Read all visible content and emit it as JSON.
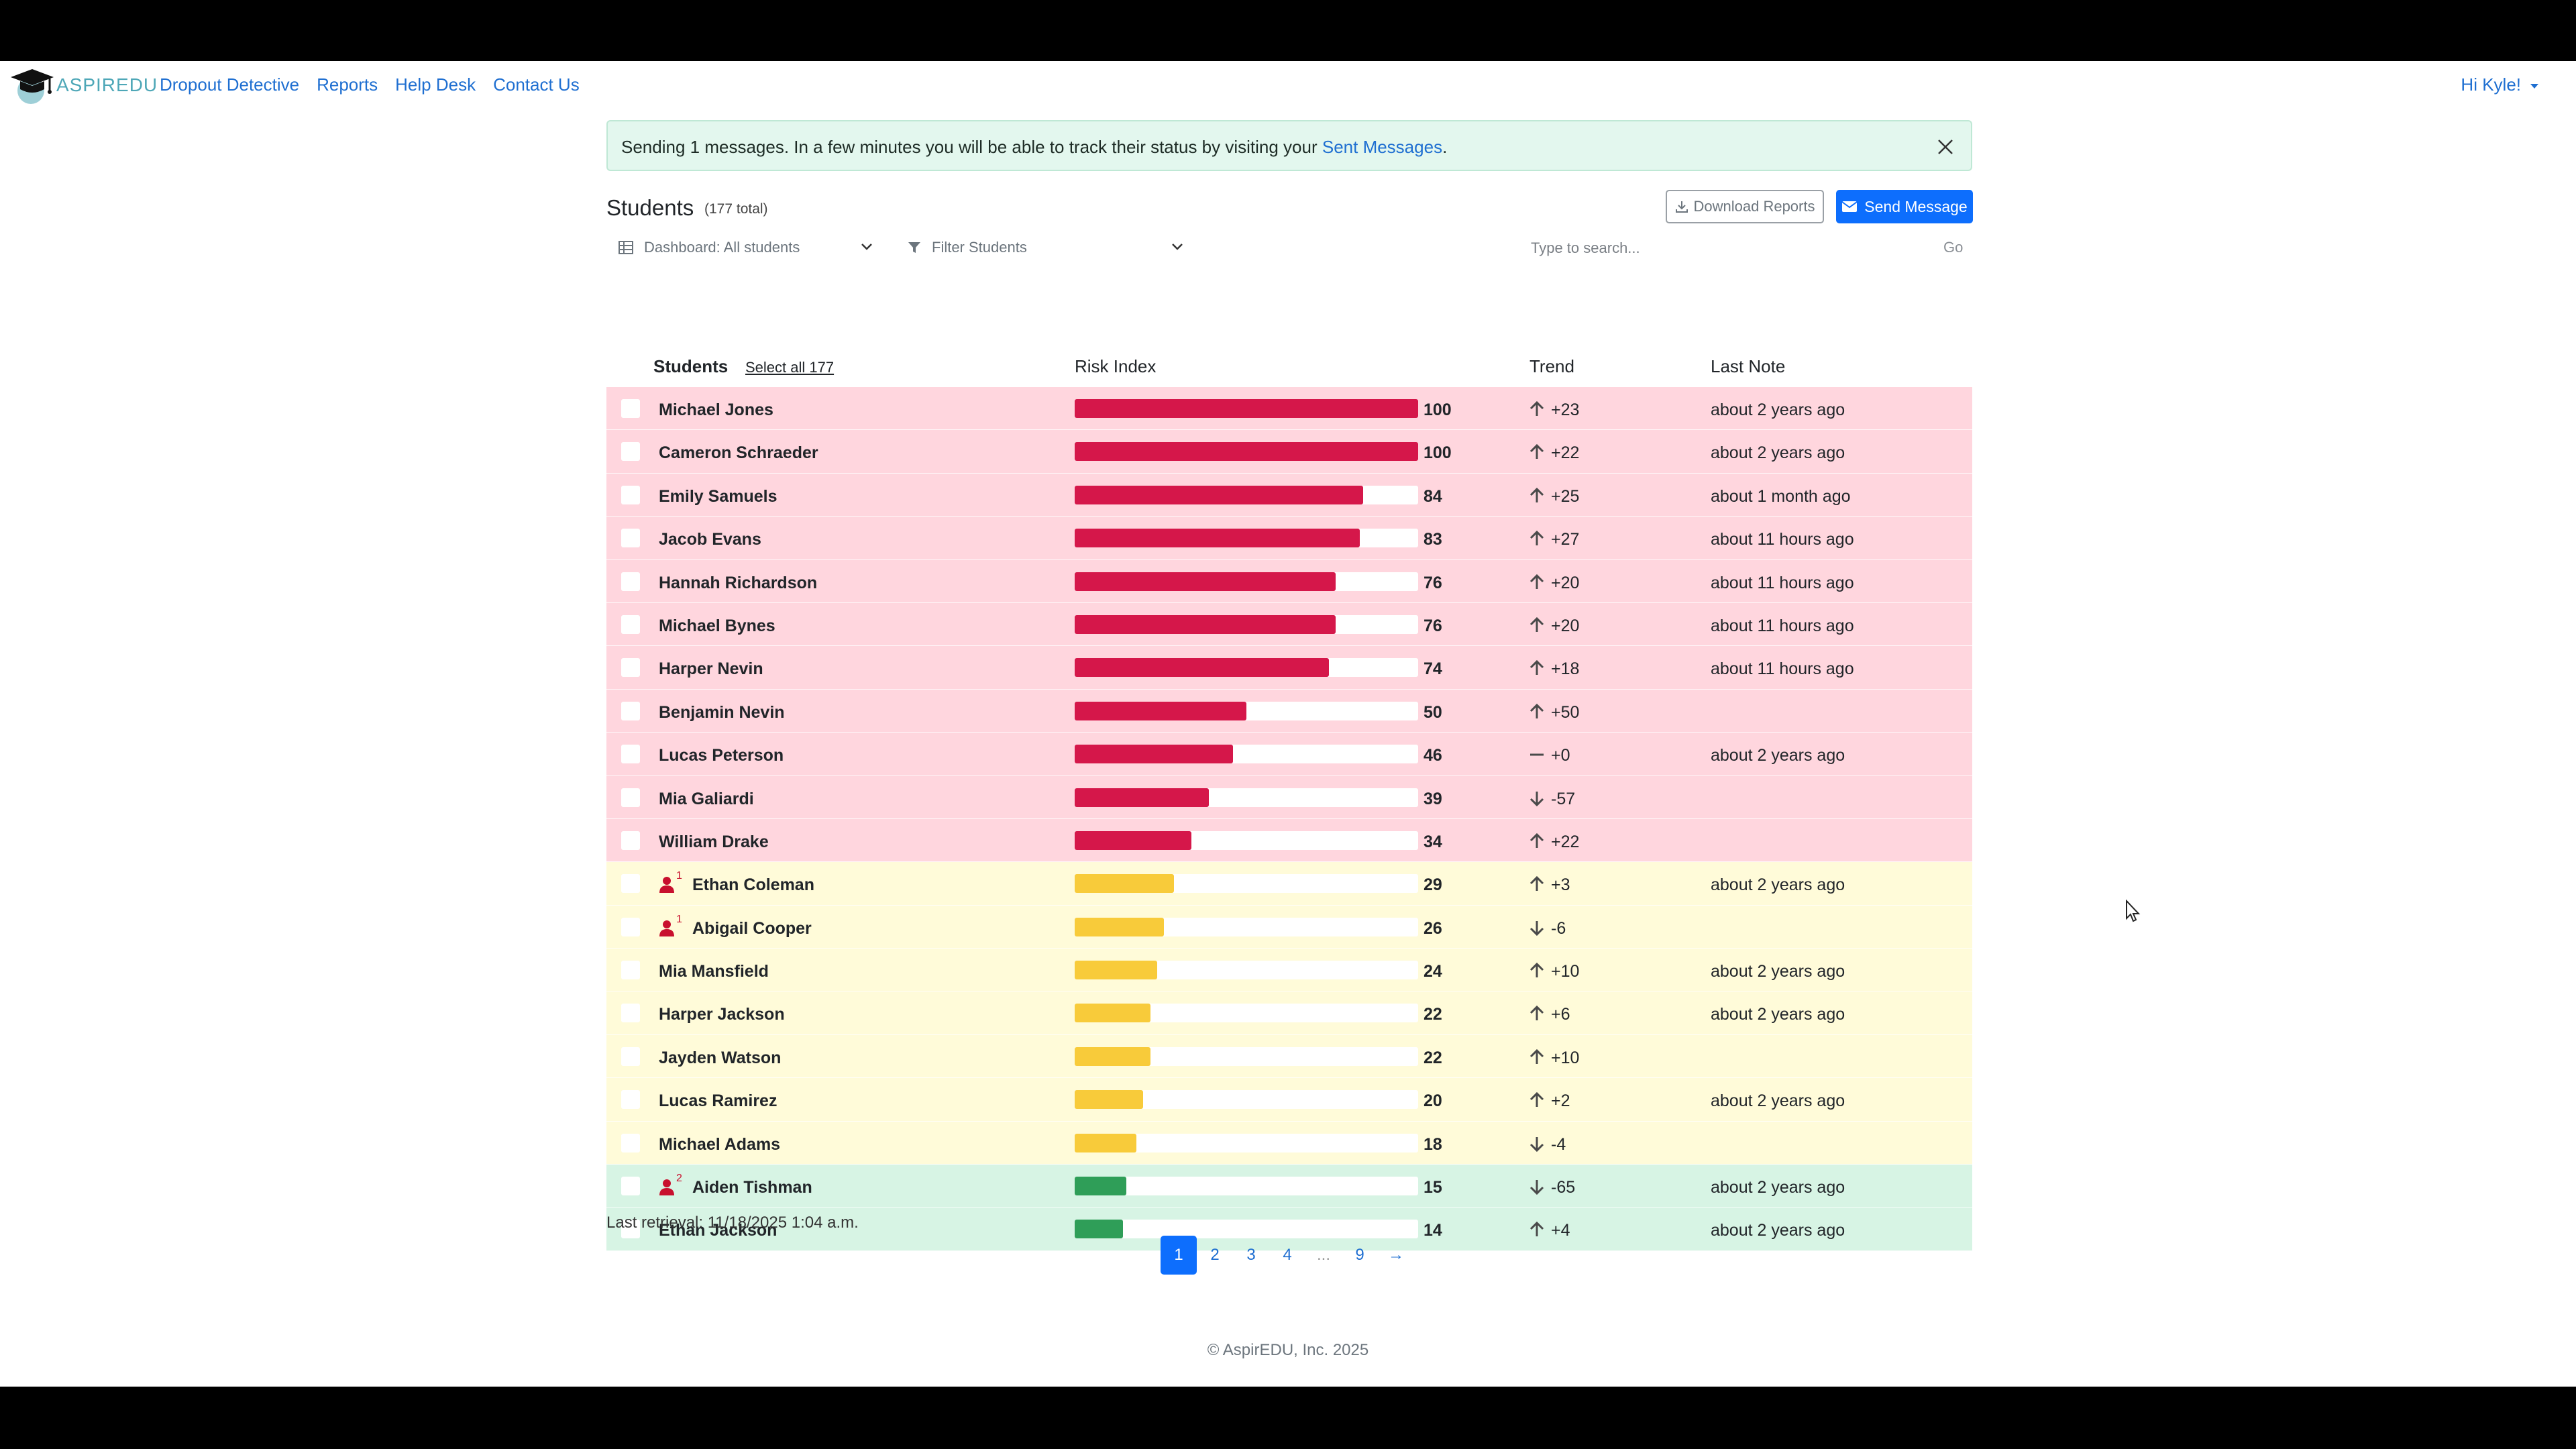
{
  "nav": {
    "brand": "ASPIREDU",
    "links": [
      "Dropout Detective",
      "Reports",
      "Help Desk",
      "Contact Us"
    ],
    "user": "Hi Kyle!"
  },
  "alert": {
    "text_before": "Sending 1 messages. In a few minutes you will be able to track their status by visiting your ",
    "link": "Sent Messages",
    "text_after": "."
  },
  "header": {
    "title": "Students",
    "total": "(177 total)",
    "download_label": "Download Reports",
    "send_label": "Send Message",
    "dashboard_filter": "Dashboard: All students",
    "student_filter": "Filter Students",
    "search_placeholder": "Type to search...",
    "go_label": "Go"
  },
  "table": {
    "headers": {
      "students": "Students",
      "select_all": "Select all 177",
      "risk": "Risk Index",
      "trend": "Trend",
      "note": "Last Note"
    },
    "rows": [
      {
        "name": "Michael Jones",
        "risk": 100,
        "trend": "+23",
        "dir": "up",
        "note": "about 2 years ago",
        "level": "red",
        "badge": ""
      },
      {
        "name": "Cameron Schraeder",
        "risk": 100,
        "trend": "+22",
        "dir": "up",
        "note": "about 2 years ago",
        "level": "red",
        "badge": ""
      },
      {
        "name": "Emily Samuels",
        "risk": 84,
        "trend": "+25",
        "dir": "up",
        "note": "about 1 month ago",
        "level": "red",
        "badge": ""
      },
      {
        "name": "Jacob Evans",
        "risk": 83,
        "trend": "+27",
        "dir": "up",
        "note": "about 11 hours ago",
        "level": "red",
        "badge": ""
      },
      {
        "name": "Hannah Richardson",
        "risk": 76,
        "trend": "+20",
        "dir": "up",
        "note": "about 11 hours ago",
        "level": "red",
        "badge": ""
      },
      {
        "name": "Michael Bynes",
        "risk": 76,
        "trend": "+20",
        "dir": "up",
        "note": "about 11 hours ago",
        "level": "red",
        "badge": ""
      },
      {
        "name": "Harper Nevin",
        "risk": 74,
        "trend": "+18",
        "dir": "up",
        "note": "about 11 hours ago",
        "level": "red",
        "badge": ""
      },
      {
        "name": "Benjamin Nevin",
        "risk": 50,
        "trend": "+50",
        "dir": "up",
        "note": "",
        "level": "red",
        "badge": ""
      },
      {
        "name": "Lucas Peterson",
        "risk": 46,
        "trend": "+0",
        "dir": "flat",
        "note": "about 2 years ago",
        "level": "red",
        "badge": ""
      },
      {
        "name": "Mia Galiardi",
        "risk": 39,
        "trend": "-57",
        "dir": "down",
        "note": "",
        "level": "red",
        "badge": ""
      },
      {
        "name": "William Drake",
        "risk": 34,
        "trend": "+22",
        "dir": "up",
        "note": "",
        "level": "red",
        "badge": ""
      },
      {
        "name": "Ethan Coleman",
        "risk": 29,
        "trend": "+3",
        "dir": "up",
        "note": "about 2 years ago",
        "level": "yellow",
        "badge": "1"
      },
      {
        "name": "Abigail Cooper",
        "risk": 26,
        "trend": "-6",
        "dir": "down",
        "note": "",
        "level": "yellow",
        "badge": "1"
      },
      {
        "name": "Mia Mansfield",
        "risk": 24,
        "trend": "+10",
        "dir": "up",
        "note": "about 2 years ago",
        "level": "yellow",
        "badge": ""
      },
      {
        "name": "Harper Jackson",
        "risk": 22,
        "trend": "+6",
        "dir": "up",
        "note": "about 2 years ago",
        "level": "yellow",
        "badge": ""
      },
      {
        "name": "Jayden Watson",
        "risk": 22,
        "trend": "+10",
        "dir": "up",
        "note": "",
        "level": "yellow",
        "badge": ""
      },
      {
        "name": "Lucas Ramirez",
        "risk": 20,
        "trend": "+2",
        "dir": "up",
        "note": "about 2 years ago",
        "level": "yellow",
        "badge": ""
      },
      {
        "name": "Michael Adams",
        "risk": 18,
        "trend": "-4",
        "dir": "down",
        "note": "",
        "level": "yellow",
        "badge": ""
      },
      {
        "name": "Aiden Tishman",
        "risk": 15,
        "trend": "-65",
        "dir": "down",
        "note": "about 2 years ago",
        "level": "green",
        "badge": "2"
      },
      {
        "name": "Ethan Jackson",
        "risk": 14,
        "trend": "+4",
        "dir": "up",
        "note": "about 2 years ago",
        "level": "green",
        "badge": ""
      }
    ]
  },
  "retrieval": "Last retrieval: 11/18/2025 1:04 a.m.",
  "pagination": {
    "pages": [
      "1",
      "2",
      "3",
      "4",
      "...",
      "9",
      "→"
    ],
    "active": "1"
  },
  "footer": "© AspirEDU, Inc. 2025",
  "colors": {
    "red_bar": "#d5174a",
    "yellow_bar": "#f8cb3a",
    "green_bar": "#2f9e58",
    "primary": "#0d6efd"
  }
}
